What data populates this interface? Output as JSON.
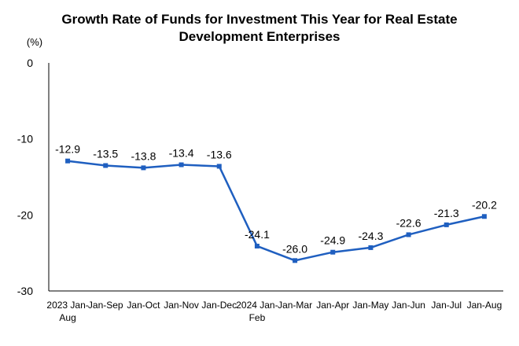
{
  "chart_data": {
    "type": "line",
    "title": [
      "Growth Rate of Funds for Investment This Year for Real Estate",
      "Development Enterprises"
    ],
    "ylabel": "(%)",
    "xlabel": "",
    "ylim": [
      -30,
      0
    ],
    "yticks": [
      0,
      -10,
      -20,
      -30
    ],
    "grid": false,
    "legend": "none",
    "categories": [
      [
        "2023 Jan-",
        "Aug"
      ],
      [
        "Jan-Sep"
      ],
      [
        "Jan-Oct"
      ],
      [
        "Jan-Nov"
      ],
      [
        "Jan-Dec"
      ],
      [
        "2024 Jan-",
        "Feb"
      ],
      [
        "Jan-Mar"
      ],
      [
        "Jan-Apr"
      ],
      [
        "Jan-May"
      ],
      [
        "Jan-Jun"
      ],
      [
        "Jan-Jul"
      ],
      [
        "Jan-Aug"
      ]
    ],
    "series": [
      {
        "color": "#1f5fc0",
        "values": [
          -12.9,
          -13.5,
          -13.8,
          -13.4,
          -13.6,
          -24.1,
          -26.0,
          -24.9,
          -24.3,
          -22.6,
          -21.3,
          -20.2
        ],
        "labels": [
          "-12.9",
          "-13.5",
          "-13.8",
          "-13.4",
          "-13.6",
          "-24.1",
          "-26.0",
          "-24.9",
          "-24.3",
          "-22.6",
          "-21.3",
          "-20.2"
        ]
      }
    ]
  }
}
